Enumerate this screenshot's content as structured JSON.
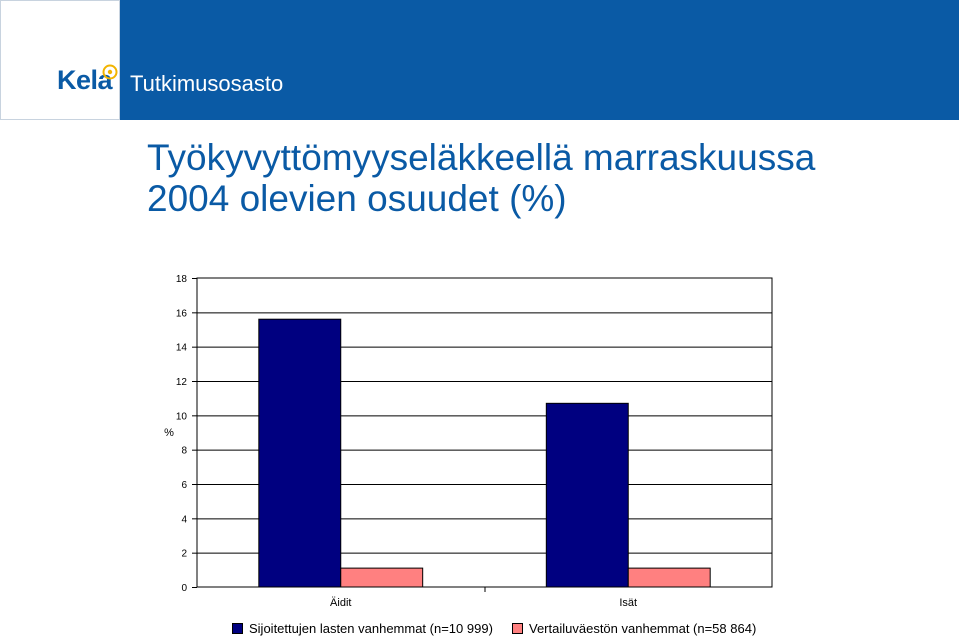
{
  "brand": {
    "name": "Kela",
    "department": "Tutkimusosasto",
    "accent": "#0a5aa5"
  },
  "slide": {
    "title": "Työkyvyttömyyseläkkeellä marraskuussa\n2004 olevien osuudet (%)"
  },
  "chart_data": {
    "type": "bar",
    "categories": [
      "Äidit",
      "Isät"
    ],
    "series": [
      {
        "name": "Sijoitettujen lasten vanhemmat (n=10 999)",
        "color": "#000080",
        "values": [
          15.6,
          10.7
        ]
      },
      {
        "name": "Vertailuväestön vanhemmat (n=58 864)",
        "color": "#ff8080",
        "values": [
          1.1,
          1.1
        ]
      }
    ],
    "ylabel": "%",
    "ylim": [
      0,
      18
    ],
    "yticks": [
      0,
      2,
      4,
      6,
      8,
      10,
      12,
      14,
      16,
      18
    ],
    "grid": true,
    "legend": "bottom"
  }
}
